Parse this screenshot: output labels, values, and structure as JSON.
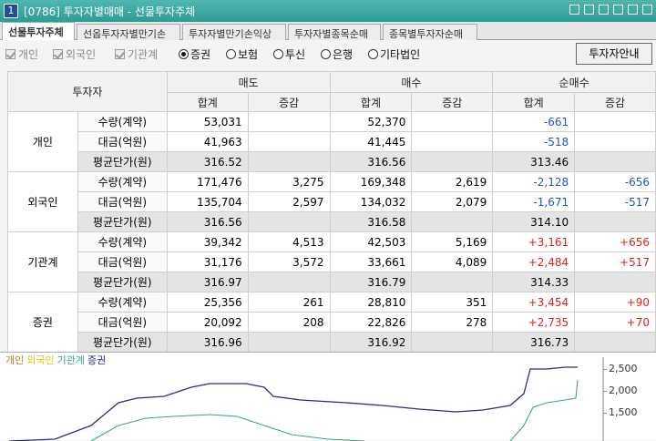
{
  "window": {
    "icon": "1",
    "title": "[0786] 투자자별매매 - 선물투자주체"
  },
  "tabs": [
    {
      "label": "선물투자주체",
      "active": true
    },
    {
      "label": "선옵투자자별만기손익",
      "active": false
    },
    {
      "label": "투자자별만기손익상세",
      "active": false
    },
    {
      "label": "투자자별종목순매수",
      "active": false
    },
    {
      "label": "종목별투자자순매수",
      "active": false
    }
  ],
  "checkboxes": [
    {
      "label": "개인",
      "checked": true
    },
    {
      "label": "외국인",
      "checked": true
    },
    {
      "label": "기관계",
      "checked": true
    }
  ],
  "radios": [
    {
      "label": "증권",
      "selected": true
    },
    {
      "label": "보험",
      "selected": false
    },
    {
      "label": "투신",
      "selected": false
    },
    {
      "label": "은행",
      "selected": false
    },
    {
      "label": "기타법인",
      "selected": false
    }
  ],
  "button": "투자자안내",
  "table": {
    "header": {
      "investor": "투자자",
      "groups": [
        "매도",
        "매수",
        "순매수"
      ],
      "sub": [
        "합계",
        "증감"
      ]
    },
    "rows": [
      {
        "investor": "개인",
        "lines": [
          {
            "item": "수량(계약)",
            "cells": [
              "53,031",
              null,
              "52,370",
              null,
              "-661",
              null
            ]
          },
          {
            "item": "대금(억원)",
            "cells": [
              "41,963",
              null,
              "41,445",
              null,
              "-518",
              null
            ]
          },
          {
            "item": "평균단가(원)",
            "cells": [
              "316.52",
              null,
              "316.56",
              null,
              "313.46",
              null
            ]
          }
        ]
      },
      {
        "investor": "외국인",
        "lines": [
          {
            "item": "수량(계약)",
            "cells": [
              "171,476",
              "3,275",
              "169,348",
              "2,619",
              "-2,128",
              "-656"
            ]
          },
          {
            "item": "대금(억원)",
            "cells": [
              "135,704",
              "2,597",
              "134,032",
              "2,079",
              "-1,671",
              "-517"
            ]
          },
          {
            "item": "평균단가(원)",
            "cells": [
              "316.56",
              null,
              "316.58",
              null,
              "314.10",
              null
            ]
          }
        ]
      },
      {
        "investor": "기관계",
        "lines": [
          {
            "item": "수량(계약)",
            "cells": [
              "39,342",
              "4,513",
              "42,503",
              "5,169",
              "+3,161",
              "+656"
            ]
          },
          {
            "item": "대금(억원)",
            "cells": [
              "31,176",
              "3,572",
              "33,661",
              "4,089",
              "+2,484",
              "+517"
            ]
          },
          {
            "item": "평균단가(원)",
            "cells": [
              "316.97",
              null,
              "316.79",
              null,
              "314.33",
              null
            ]
          }
        ]
      },
      {
        "investor": "증권",
        "lines": [
          {
            "item": "수량(계약)",
            "cells": [
              "25,356",
              "261",
              "28,810",
              "351",
              "+3,454",
              "+90"
            ]
          },
          {
            "item": "대금(억원)",
            "cells": [
              "20,092",
              "208",
              "22,826",
              "278",
              "+2,735",
              "+70"
            ]
          },
          {
            "item": "평균단가(원)",
            "cells": [
              "316.96",
              null,
              "316.92",
              null,
              "316.73",
              null
            ]
          }
        ]
      }
    ]
  },
  "chart": {
    "legend": [
      {
        "name": "개인",
        "color": "#c07a2a"
      },
      {
        "name": "외국인",
        "color": "#e0c020"
      },
      {
        "name": "기관계",
        "color": "#3aa87a"
      },
      {
        "name": "증권",
        "color": "#2a2a8a"
      }
    ],
    "yticks": [
      "2,500",
      "2,000",
      "1,500"
    ]
  }
}
